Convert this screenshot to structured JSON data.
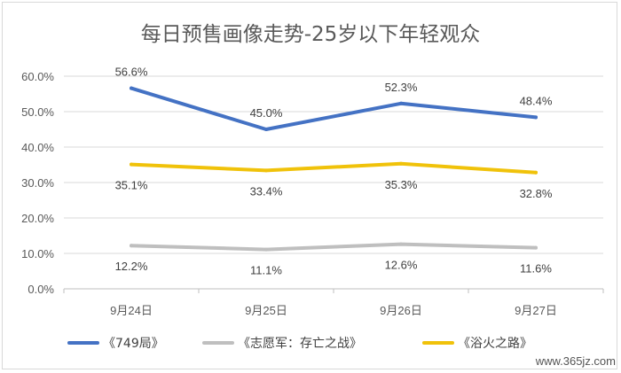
{
  "chart_data": {
    "type": "line",
    "title": "每日预售画像走势-25岁以下年轻观众",
    "categories": [
      "9月24日",
      "9月25日",
      "9月26日",
      "9月27日"
    ],
    "ylim": [
      0,
      60
    ],
    "yticks": [
      "0.0%",
      "10.0%",
      "20.0%",
      "30.0%",
      "40.0%",
      "50.0%",
      "60.0%"
    ],
    "grid": true,
    "legend_position": "bottom",
    "series": [
      {
        "name": "《749局》",
        "values": [
          56.6,
          45.0,
          52.3,
          48.4
        ],
        "labels": [
          "56.6%",
          "45.0%",
          "52.3%",
          "48.4%"
        ],
        "label_position": "above",
        "color": "#4472c4"
      },
      {
        "name": "《志愿军：存亡之战》",
        "values": [
          12.2,
          11.1,
          12.6,
          11.6
        ],
        "labels": [
          "12.2%",
          "11.1%",
          "12.6%",
          "11.6%"
        ],
        "label_position": "below",
        "color": "#bfbfbf"
      },
      {
        "name": "《浴火之路》",
        "values": [
          35.1,
          33.4,
          35.3,
          32.8
        ],
        "labels": [
          "35.1%",
          "33.4%",
          "35.3%",
          "32.8%"
        ],
        "label_position": "below",
        "color": "#f0c20a"
      }
    ]
  },
  "watermark": "www.365jz.com"
}
